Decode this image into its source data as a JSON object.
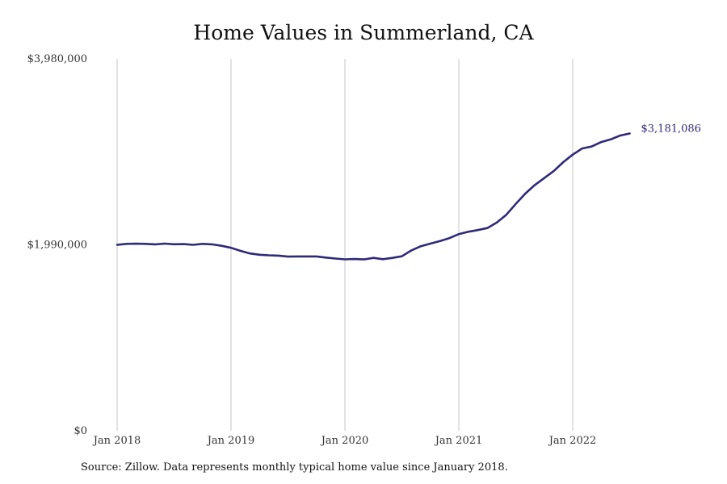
{
  "chart_data": {
    "type": "line",
    "title": "Home Values in Summerland, CA",
    "xlabel": "",
    "ylabel": "",
    "ylim": [
      0,
      3980000
    ],
    "y_ticks": [
      {
        "value": 0,
        "label": "$0"
      },
      {
        "value": 1990000,
        "label": "$1,990,000"
      },
      {
        "value": 3980000,
        "label": "$3,980,000"
      }
    ],
    "x_ticks": [
      {
        "value": "2018-01",
        "label": "Jan 2018"
      },
      {
        "value": "2019-01",
        "label": "Jan 2019"
      },
      {
        "value": "2020-01",
        "label": "Jan 2020"
      },
      {
        "value": "2021-01",
        "label": "Jan 2021"
      },
      {
        "value": "2022-01",
        "label": "Jan 2022"
      }
    ],
    "grid": {
      "vertical": true,
      "horizontal": false
    },
    "line_color": "#2e2a7a",
    "grid_color": "#c4c4c4",
    "end_label": "$3,181,086",
    "series": [
      {
        "x": [
          "2018-01",
          "2018-02",
          "2018-03",
          "2018-04",
          "2018-05",
          "2018-06",
          "2018-07",
          "2018-08",
          "2018-09",
          "2018-10",
          "2018-11",
          "2018-12",
          "2019-01",
          "2019-02",
          "2019-03",
          "2019-04",
          "2019-05",
          "2019-06",
          "2019-07",
          "2019-08",
          "2019-09",
          "2019-10",
          "2019-11",
          "2019-12",
          "2020-01",
          "2020-02",
          "2020-03",
          "2020-04",
          "2020-05",
          "2020-06",
          "2020-07",
          "2020-08",
          "2020-09",
          "2020-10",
          "2020-11",
          "2020-12",
          "2021-01",
          "2021-02",
          "2021-03",
          "2021-04",
          "2021-05",
          "2021-06",
          "2021-07",
          "2021-08",
          "2021-09",
          "2021-10",
          "2021-11",
          "2021-12",
          "2022-01",
          "2022-02",
          "2022-03",
          "2022-04",
          "2022-05",
          "2022-06",
          "2022-07"
        ],
        "values": [
          1990000,
          2000000,
          2002000,
          2000000,
          1995000,
          2003000,
          1996000,
          1998000,
          1990000,
          2000000,
          1995000,
          1980000,
          1958000,
          1925000,
          1898000,
          1884000,
          1878000,
          1874000,
          1864000,
          1866000,
          1866000,
          1866000,
          1854000,
          1843000,
          1835000,
          1838000,
          1834000,
          1850000,
          1836000,
          1850000,
          1867000,
          1930000,
          1975000,
          2003000,
          2030000,
          2062000,
          2105000,
          2130000,
          2148000,
          2170000,
          2228000,
          2312000,
          2428000,
          2538000,
          2630000,
          2705000,
          2779000,
          2875000,
          2955000,
          3022000,
          3042000,
          3090000,
          3118000,
          3160000,
          3181086
        ]
      }
    ]
  },
  "footer": {
    "source": "Source: Zillow. Data represents monthly typical home value since January 2018."
  }
}
